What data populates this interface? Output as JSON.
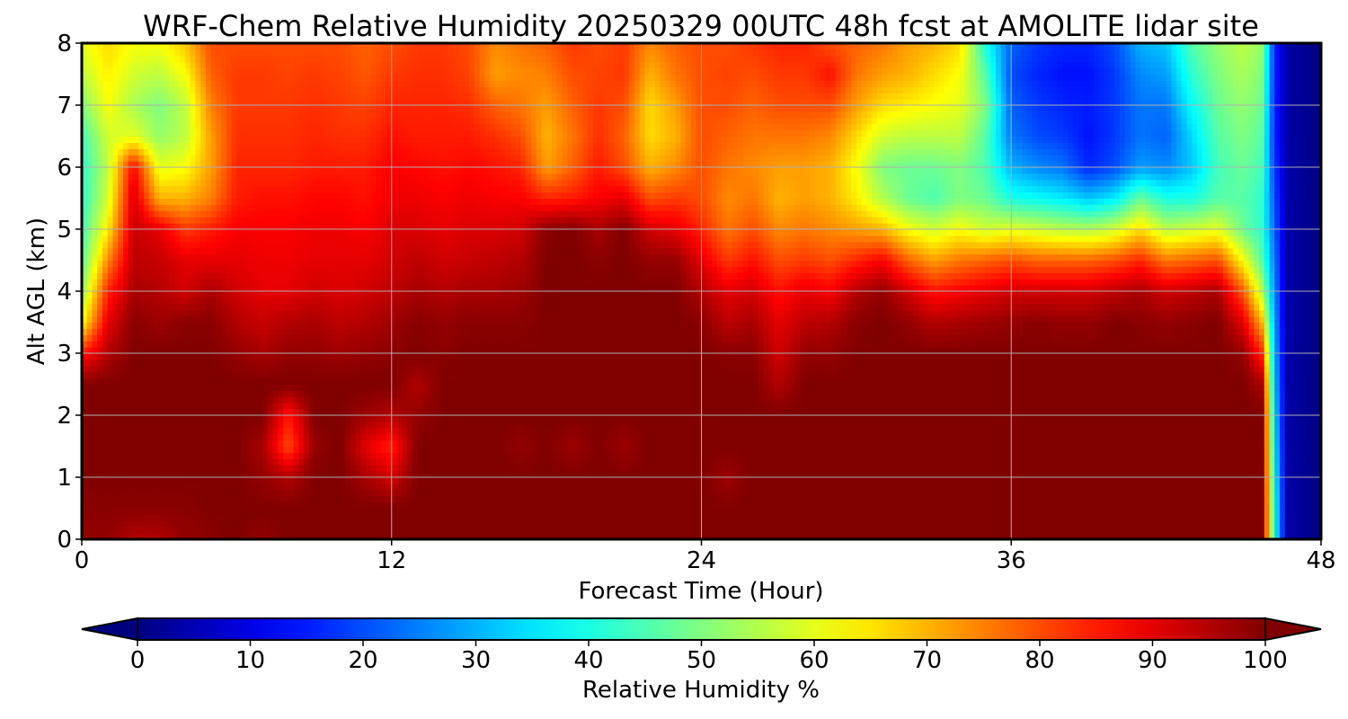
{
  "chart_data": {
    "type": "heatmap",
    "title": "WRF-Chem Relative Humidity 20250329 00UTC 48h fcst at AMOLITE lidar site",
    "xlabel": "Forecast Time (Hour)",
    "ylabel": "Alt AGL (km)",
    "xlim": [
      0,
      48
    ],
    "ylim": [
      0,
      8
    ],
    "x_ticks": [
      "0",
      "12",
      "24",
      "36",
      "48"
    ],
    "y_ticks": [
      "0",
      "1",
      "2",
      "3",
      "4",
      "5",
      "6",
      "7",
      "8"
    ],
    "grid": true,
    "colorbar": {
      "label": "Relative Humidity %",
      "colormap": "jet",
      "min": 0,
      "max": 100,
      "extend": "both",
      "ticks": [
        "0",
        "10",
        "20",
        "30",
        "40",
        "50",
        "60",
        "70",
        "80",
        "90",
        "100"
      ]
    },
    "x": [
      0,
      1,
      2,
      3,
      4,
      5,
      6,
      7,
      8,
      9,
      10,
      11,
      12,
      13,
      14,
      15,
      16,
      17,
      18,
      19,
      20,
      21,
      22,
      23,
      24,
      25,
      26,
      27,
      28,
      29,
      30,
      31,
      32,
      33,
      34,
      35,
      36,
      37,
      38,
      39,
      40,
      41,
      42,
      43,
      44,
      45,
      46,
      47,
      48
    ],
    "y": [
      0,
      0.5,
      1,
      1.5,
      2,
      2.5,
      3,
      3.5,
      4,
      4.5,
      5,
      5.5,
      6,
      6.5,
      7,
      7.5,
      8
    ],
    "profiles": [
      {
        "x": 0,
        "v": [
          98,
          99,
          100,
          100,
          100,
          100,
          85,
          62,
          52,
          46,
          44,
          42,
          42,
          44,
          50,
          56,
          60
        ]
      },
      {
        "x": 1,
        "v": [
          98,
          99,
          100,
          100,
          100,
          100,
          95,
          90,
          84,
          74,
          64,
          58,
          56,
          58,
          62,
          64,
          66
        ]
      },
      {
        "x": 2,
        "v": [
          95,
          99,
          100,
          100,
          100,
          100,
          100,
          99,
          96,
          94,
          93,
          92,
          88,
          60,
          54,
          58,
          62
        ]
      },
      {
        "x": 3,
        "v": [
          95,
          99,
          100,
          100,
          100,
          100,
          100,
          97,
          95,
          93,
          90,
          70,
          60,
          52,
          50,
          56,
          62
        ]
      },
      {
        "x": 4,
        "v": [
          98,
          99,
          100,
          100,
          100,
          100,
          100,
          99,
          92,
          90,
          82,
          70,
          62,
          56,
          56,
          62,
          68
        ]
      },
      {
        "x": 5,
        "v": [
          99,
          100,
          100,
          100,
          100,
          100,
          100,
          99,
          96,
          90,
          85,
          75,
          72,
          72,
          75,
          78,
          80
        ]
      },
      {
        "x": 6,
        "v": [
          100,
          100,
          100,
          100,
          100,
          100,
          98,
          95,
          92,
          90,
          88,
          85,
          84,
          83,
          82,
          82,
          80
        ]
      },
      {
        "x": 7,
        "v": [
          98,
          100,
          98,
          96,
          100,
          100,
          96,
          93,
          90,
          89,
          88,
          86,
          84,
          83,
          82,
          82,
          80
        ]
      },
      {
        "x": 8,
        "v": [
          100,
          100,
          95,
          80,
          85,
          100,
          98,
          95,
          90,
          89,
          88,
          86,
          84,
          83,
          82,
          81,
          80
        ]
      },
      {
        "x": 9,
        "v": [
          100,
          100,
          100,
          98,
          100,
          100,
          98,
          96,
          92,
          90,
          89,
          87,
          85,
          84,
          83,
          82,
          80
        ]
      },
      {
        "x": 10,
        "v": [
          100,
          100,
          100,
          100,
          100,
          100,
          97,
          94,
          91,
          90,
          89,
          87,
          85,
          83,
          82,
          81,
          80
        ]
      },
      {
        "x": 11,
        "v": [
          100,
          100,
          96,
          90,
          97,
          100,
          98,
          95,
          92,
          90,
          88,
          86,
          85,
          83,
          81,
          79,
          78
        ]
      },
      {
        "x": 12,
        "v": [
          100,
          100,
          92,
          84,
          95,
          100,
          99,
          97,
          94,
          92,
          91,
          89,
          88,
          86,
          84,
          82,
          80
        ]
      },
      {
        "x": 13,
        "v": [
          100,
          100,
          100,
          100,
          98,
          95,
          100,
          99,
          96,
          94,
          91,
          89,
          87,
          85,
          84,
          83,
          82
        ]
      },
      {
        "x": 14,
        "v": [
          100,
          100,
          100,
          100,
          100,
          100,
          99,
          98,
          95,
          92,
          90,
          88,
          86,
          85,
          84,
          83,
          82
        ]
      },
      {
        "x": 15,
        "v": [
          100,
          100,
          100,
          100,
          100,
          100,
          100,
          99,
          96,
          93,
          91,
          89,
          87,
          85,
          83,
          81,
          80
        ]
      },
      {
        "x": 16,
        "v": [
          100,
          100,
          100,
          100,
          100,
          100,
          100,
          99,
          96,
          94,
          91,
          88,
          86,
          83,
          78,
          72,
          74
        ]
      },
      {
        "x": 17,
        "v": [
          100,
          100,
          100,
          98,
          100,
          100,
          100,
          99,
          97,
          95,
          92,
          88,
          84,
          80,
          76,
          74,
          76
        ]
      },
      {
        "x": 18,
        "v": [
          100,
          100,
          100,
          100,
          100,
          100,
          100,
          100,
          100,
          100,
          99,
          84,
          72,
          70,
          72,
          75,
          78
        ]
      },
      {
        "x": 19,
        "v": [
          100,
          100,
          100,
          97,
          100,
          100,
          100,
          100,
          100,
          100,
          100,
          85,
          78,
          76,
          78,
          80,
          82
        ]
      },
      {
        "x": 20,
        "v": [
          100,
          100,
          100,
          100,
          100,
          100,
          100,
          100,
          100,
          99,
          96,
          88,
          85,
          83,
          82,
          81,
          80
        ]
      },
      {
        "x": 21,
        "v": [
          100,
          100,
          100,
          97,
          100,
          100,
          100,
          100,
          100,
          100,
          100,
          90,
          80,
          78,
          80,
          82,
          82
        ]
      },
      {
        "x": 22,
        "v": [
          100,
          100,
          100,
          100,
          100,
          100,
          100,
          100,
          100,
          98,
          92,
          80,
          70,
          66,
          66,
          70,
          74
        ]
      },
      {
        "x": 23,
        "v": [
          100,
          100,
          100,
          100,
          100,
          100,
          100,
          100,
          100,
          98,
          90,
          82,
          74,
          70,
          72,
          76,
          78
        ]
      },
      {
        "x": 24,
        "v": [
          100,
          100,
          100,
          100,
          100,
          100,
          100,
          99,
          95,
          90,
          84,
          80,
          80,
          80,
          80,
          80,
          80
        ]
      },
      {
        "x": 25,
        "v": [
          100,
          100,
          97,
          100,
          100,
          100,
          99,
          94,
          90,
          82,
          76,
          74,
          76,
          78,
          80,
          81,
          80
        ]
      },
      {
        "x": 26,
        "v": [
          100,
          100,
          100,
          100,
          100,
          100,
          99,
          96,
          92,
          86,
          80,
          76,
          74,
          76,
          78,
          80,
          82
        ]
      },
      {
        "x": 27,
        "v": [
          100,
          100,
          100,
          100,
          100,
          95,
          92,
          90,
          86,
          80,
          74,
          70,
          72,
          76,
          80,
          82,
          84
        ]
      },
      {
        "x": 28,
        "v": [
          100,
          100,
          100,
          100,
          100,
          100,
          98,
          94,
          90,
          82,
          76,
          72,
          72,
          76,
          80,
          82,
          84
        ]
      },
      {
        "x": 29,
        "v": [
          100,
          100,
          100,
          100,
          100,
          100,
          98,
          95,
          88,
          80,
          74,
          70,
          70,
          74,
          80,
          86,
          80
        ]
      },
      {
        "x": 30,
        "v": [
          100,
          100,
          100,
          100,
          100,
          100,
          100,
          99,
          95,
          84,
          72,
          64,
          62,
          66,
          72,
          76,
          78
        ]
      },
      {
        "x": 31,
        "v": [
          100,
          100,
          100,
          100,
          100,
          100,
          100,
          100,
          98,
          88,
          70,
          55,
          50,
          58,
          66,
          72,
          76
        ]
      },
      {
        "x": 32,
        "v": [
          100,
          100,
          100,
          100,
          100,
          100,
          100,
          98,
          92,
          78,
          62,
          48,
          48,
          56,
          64,
          70,
          72
        ]
      },
      {
        "x": 33,
        "v": [
          100,
          100,
          100,
          100,
          100,
          100,
          100,
          95,
          86,
          72,
          58,
          45,
          48,
          56,
          62,
          66,
          70
        ]
      },
      {
        "x": 34,
        "v": [
          100,
          100,
          100,
          100,
          100,
          100,
          100,
          96,
          88,
          76,
          62,
          50,
          50,
          56,
          60,
          62,
          66
        ]
      },
      {
        "x": 35,
        "v": [
          100,
          100,
          100,
          100,
          100,
          100,
          100,
          97,
          90,
          78,
          58,
          48,
          45,
          46,
          50,
          46,
          40
        ]
      },
      {
        "x": 36,
        "v": [
          100,
          100,
          100,
          100,
          100,
          100,
          100,
          98,
          92,
          80,
          60,
          40,
          30,
          24,
          22,
          20,
          22
        ]
      },
      {
        "x": 37,
        "v": [
          100,
          100,
          100,
          100,
          100,
          100,
          100,
          99,
          92,
          78,
          58,
          38,
          26,
          20,
          18,
          16,
          18
        ]
      },
      {
        "x": 38,
        "v": [
          100,
          100,
          100,
          100,
          100,
          100,
          100,
          98,
          92,
          78,
          56,
          36,
          24,
          18,
          16,
          14,
          16
        ]
      },
      {
        "x": 39,
        "v": [
          100,
          100,
          100,
          100,
          100,
          100,
          100,
          98,
          92,
          78,
          55,
          32,
          16,
          14,
          15,
          14,
          16
        ]
      },
      {
        "x": 40,
        "v": [
          100,
          100,
          100,
          100,
          100,
          100,
          100,
          100,
          94,
          80,
          58,
          36,
          20,
          18,
          18,
          18,
          20
        ]
      },
      {
        "x": 41,
        "v": [
          100,
          100,
          100,
          100,
          100,
          100,
          100,
          99,
          96,
          84,
          66,
          48,
          28,
          24,
          24,
          26,
          30
        ]
      },
      {
        "x": 42,
        "v": [
          100,
          100,
          100,
          100,
          100,
          100,
          100,
          98,
          92,
          76,
          56,
          40,
          26,
          22,
          24,
          28,
          32
        ]
      },
      {
        "x": 43,
        "v": [
          100,
          100,
          100,
          100,
          100,
          100,
          100,
          99,
          94,
          78,
          58,
          40,
          32,
          34,
          38,
          42,
          46
        ]
      },
      {
        "x": 44,
        "v": [
          100,
          100,
          100,
          100,
          100,
          100,
          100,
          100,
          96,
          80,
          60,
          46,
          44,
          46,
          48,
          50,
          52
        ]
      },
      {
        "x": 45,
        "v": [
          100,
          100,
          100,
          100,
          100,
          100,
          98,
          90,
          78,
          62,
          48,
          46,
          48,
          50,
          52,
          54,
          56
        ]
      },
      {
        "x": 45.7,
        "v": [
          100,
          100,
          100,
          100,
          100,
          96,
          84,
          70,
          56,
          46,
          42,
          42,
          44,
          46,
          48,
          50,
          52
        ]
      },
      {
        "x": 46.2,
        "v": [
          40,
          40,
          38,
          36,
          34,
          32,
          30,
          28,
          26,
          24,
          22,
          20,
          18,
          16,
          16,
          16,
          16
        ]
      },
      {
        "x": 46.7,
        "v": [
          4,
          4,
          4,
          4,
          4,
          4,
          4,
          4,
          4,
          4,
          4,
          4,
          4,
          4,
          4,
          4,
          4
        ]
      },
      {
        "x": 48,
        "v": [
          0,
          0,
          0,
          0,
          0,
          0,
          0,
          0,
          0,
          0,
          0,
          0,
          0,
          0,
          0,
          0,
          0
        ]
      }
    ]
  }
}
